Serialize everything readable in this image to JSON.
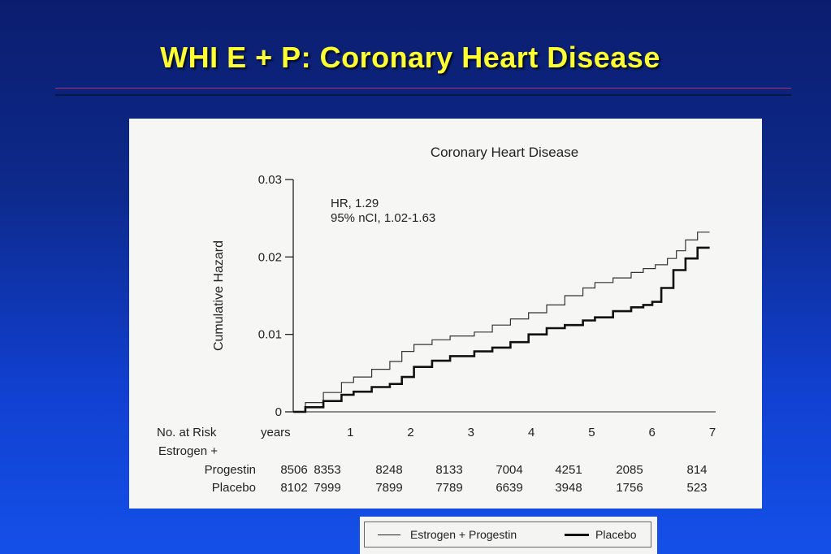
{
  "slide": {
    "title": "WHI E + P:  Coronary Heart Disease"
  },
  "chart_data": {
    "type": "line",
    "title": "Coronary Heart Disease",
    "xlabel": "years",
    "ylabel": "Cumulative Hazard",
    "xlim": [
      0,
      7
    ],
    "ylim": [
      0,
      0.03
    ],
    "x_ticks": [
      1,
      2,
      3,
      4,
      5,
      6,
      7
    ],
    "y_ticks": [
      "0",
      "0.01",
      "0.02",
      "0.03"
    ],
    "annotation": [
      "HR, 1.29",
      "95% nCI, 1.02-1.63"
    ],
    "series": [
      {
        "name": "Estrogen + Progestin",
        "x": [
          0,
          0.2,
          0.5,
          0.8,
          1.0,
          1.3,
          1.6,
          1.8,
          2.0,
          2.3,
          2.6,
          3.0,
          3.3,
          3.6,
          3.9,
          4.2,
          4.5,
          4.8,
          5.0,
          5.3,
          5.6,
          5.8,
          6.0,
          6.2,
          6.35,
          6.5,
          6.7,
          6.9
        ],
        "values": [
          0,
          0.0012,
          0.0025,
          0.0038,
          0.0045,
          0.0055,
          0.0065,
          0.0078,
          0.0087,
          0.0093,
          0.0098,
          0.0103,
          0.0112,
          0.012,
          0.0128,
          0.0138,
          0.015,
          0.016,
          0.0167,
          0.0173,
          0.018,
          0.0185,
          0.019,
          0.0198,
          0.0208,
          0.0222,
          0.0232,
          0.0232
        ]
      },
      {
        "name": "Placebo",
        "x": [
          0,
          0.2,
          0.5,
          0.8,
          1.0,
          1.3,
          1.6,
          1.8,
          2.0,
          2.3,
          2.6,
          3.0,
          3.3,
          3.6,
          3.9,
          4.2,
          4.5,
          4.8,
          5.0,
          5.3,
          5.6,
          5.8,
          5.95,
          6.1,
          6.3,
          6.5,
          6.7,
          6.9
        ],
        "values": [
          0,
          0.0006,
          0.0014,
          0.0022,
          0.0026,
          0.0032,
          0.0036,
          0.0045,
          0.0058,
          0.0066,
          0.0072,
          0.0078,
          0.0083,
          0.009,
          0.01,
          0.0108,
          0.0112,
          0.0118,
          0.0122,
          0.013,
          0.0135,
          0.0138,
          0.0142,
          0.016,
          0.0183,
          0.0198,
          0.0212,
          0.0212
        ]
      }
    ],
    "risk_table": {
      "label": "No. at Risk",
      "rows": [
        {
          "name_line1": "Estrogen +",
          "name_line2": "Progestin",
          "values": [
            "8506",
            "8353",
            "8248",
            "8133",
            "7004",
            "4251",
            "2085",
            "814"
          ]
        },
        {
          "name_line1": "",
          "name_line2": "Placebo",
          "values": [
            "8102",
            "7999",
            "7899",
            "7789",
            "6639",
            "3948",
            "1756",
            "523"
          ]
        }
      ]
    },
    "legend": {
      "placement": "bottom",
      "items": [
        "Estrogen + Progestin",
        "Placebo"
      ]
    }
  }
}
